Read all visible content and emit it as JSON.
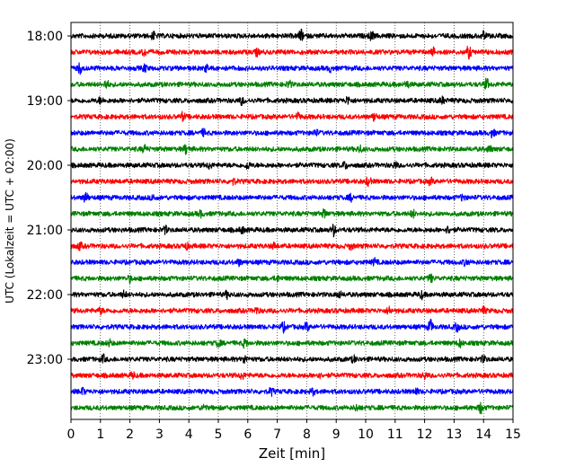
{
  "chart_data": {
    "type": "line",
    "xlabel": "Zeit  [min]",
    "ylabel": "UTC (Lokalzeit = UTC + 02:00)",
    "xlim": [
      0,
      15
    ],
    "x_ticks": [
      0,
      1,
      2,
      3,
      4,
      5,
      6,
      7,
      8,
      9,
      10,
      11,
      12,
      13,
      14,
      15
    ],
    "y_tick_labels": [
      "18:00",
      "19:00",
      "20:00",
      "21:00",
      "22:00",
      "23:00"
    ],
    "grid": "vertical-dotted",
    "trace_colors": [
      "#000000",
      "#ff0000",
      "#0000ff",
      "#008000"
    ],
    "rows": [
      {
        "start": "18:00",
        "color": "#000000",
        "events": [
          [
            2.8,
            1.6
          ],
          [
            7.8,
            2.6
          ],
          [
            10.2,
            2.0
          ],
          [
            14.0,
            1.8
          ]
        ]
      },
      {
        "start": "18:15",
        "color": "#ff0000",
        "events": [
          [
            2.5,
            1.5
          ],
          [
            6.3,
            1.4
          ],
          [
            12.3,
            1.6
          ],
          [
            13.5,
            2.8
          ]
        ]
      },
      {
        "start": "18:30",
        "color": "#0000ff",
        "events": [
          [
            0.3,
            2.2
          ],
          [
            2.5,
            1.5
          ],
          [
            4.6,
            1.3
          ],
          [
            8.8,
            1.3
          ]
        ]
      },
      {
        "start": "18:45",
        "color": "#008000",
        "events": [
          [
            1.2,
            2.0
          ],
          [
            7.4,
            1.6
          ],
          [
            11.4,
            1.5
          ],
          [
            14.1,
            2.4
          ]
        ]
      },
      {
        "start": "19:00",
        "color": "#000000",
        "events": [
          [
            1.0,
            1.3
          ],
          [
            5.8,
            1.5
          ],
          [
            9.4,
            1.8
          ],
          [
            12.6,
            1.4
          ]
        ]
      },
      {
        "start": "19:15",
        "color": "#ff0000",
        "events": [
          [
            3.8,
            1.7
          ],
          [
            7.7,
            1.3
          ],
          [
            10.3,
            1.7
          ]
        ]
      },
      {
        "start": "19:30",
        "color": "#0000ff",
        "events": [
          [
            4.5,
            1.3
          ],
          [
            8.3,
            1.4
          ],
          [
            14.3,
            1.8
          ]
        ]
      },
      {
        "start": "19:45",
        "color": "#008000",
        "events": [
          [
            2.5,
            1.6
          ],
          [
            3.9,
            2.0
          ],
          [
            9.8,
            1.4
          ],
          [
            14.2,
            1.4
          ]
        ]
      },
      {
        "start": "20:00",
        "color": "#000000",
        "events": [
          [
            4.7,
            1.4
          ],
          [
            6.0,
            1.6
          ],
          [
            9.3,
            1.5
          ],
          [
            11.0,
            1.3
          ]
        ]
      },
      {
        "start": "20:15",
        "color": "#ff0000",
        "events": [
          [
            5.5,
            1.3
          ],
          [
            10.1,
            2.2
          ],
          [
            12.2,
            1.3
          ]
        ]
      },
      {
        "start": "20:30",
        "color": "#0000ff",
        "events": [
          [
            0.5,
            2.6
          ],
          [
            2.8,
            1.4
          ],
          [
            9.5,
            1.3
          ],
          [
            13.3,
            1.4
          ]
        ]
      },
      {
        "start": "20:45",
        "color": "#008000",
        "events": [
          [
            4.4,
            1.3
          ],
          [
            8.6,
            1.8
          ],
          [
            11.6,
            1.7
          ]
        ]
      },
      {
        "start": "21:00",
        "color": "#000000",
        "events": [
          [
            3.2,
            1.5
          ],
          [
            5.8,
            1.4
          ],
          [
            8.9,
            2.6
          ],
          [
            12.8,
            1.4
          ]
        ]
      },
      {
        "start": "21:15",
        "color": "#ff0000",
        "events": [
          [
            0.3,
            1.5
          ],
          [
            3.9,
            1.4
          ],
          [
            6.9,
            1.3
          ],
          [
            9.5,
            1.3
          ]
        ]
      },
      {
        "start": "21:30",
        "color": "#0000ff",
        "events": [
          [
            5.7,
            1.3
          ],
          [
            10.3,
            1.4
          ],
          [
            13.4,
            1.5
          ]
        ]
      },
      {
        "start": "21:45",
        "color": "#008000",
        "events": [
          [
            2.0,
            1.3
          ],
          [
            7.0,
            1.3
          ],
          [
            12.2,
            1.7
          ]
        ]
      },
      {
        "start": "22:00",
        "color": "#000000",
        "events": [
          [
            1.8,
            1.4
          ],
          [
            5.3,
            1.4
          ],
          [
            9.1,
            1.3
          ],
          [
            11.9,
            1.5
          ]
        ]
      },
      {
        "start": "22:15",
        "color": "#ff0000",
        "events": [
          [
            1.0,
            1.3
          ],
          [
            6.3,
            1.4
          ],
          [
            10.8,
            1.8
          ],
          [
            14.0,
            1.4
          ]
        ]
      },
      {
        "start": "22:30",
        "color": "#0000ff",
        "events": [
          [
            7.2,
            2.0
          ],
          [
            8.0,
            1.8
          ],
          [
            12.2,
            3.2
          ],
          [
            13.1,
            1.8
          ]
        ]
      },
      {
        "start": "22:45",
        "color": "#008000",
        "events": [
          [
            1.3,
            1.3
          ],
          [
            5.0,
            1.5
          ],
          [
            5.9,
            1.8
          ],
          [
            13.2,
            1.6
          ]
        ]
      },
      {
        "start": "23:00",
        "color": "#000000",
        "events": [
          [
            1.1,
            1.6
          ],
          [
            5.9,
            1.7
          ],
          [
            9.6,
            1.3
          ],
          [
            14.0,
            1.4
          ]
        ]
      },
      {
        "start": "23:15",
        "color": "#ff0000",
        "events": [
          [
            2.1,
            1.3
          ],
          [
            5.8,
            1.6
          ],
          [
            8.4,
            1.3
          ],
          [
            12.0,
            1.4
          ]
        ]
      },
      {
        "start": "23:30",
        "color": "#0000ff",
        "events": [
          [
            0.4,
            1.3
          ],
          [
            6.8,
            1.6
          ],
          [
            8.2,
            1.4
          ],
          [
            11.7,
            1.4
          ]
        ]
      },
      {
        "start": "23:45",
        "color": "#008000",
        "events": [
          [
            4.5,
            1.3
          ],
          [
            9.7,
            1.4
          ],
          [
            13.9,
            2.4
          ]
        ]
      }
    ]
  }
}
